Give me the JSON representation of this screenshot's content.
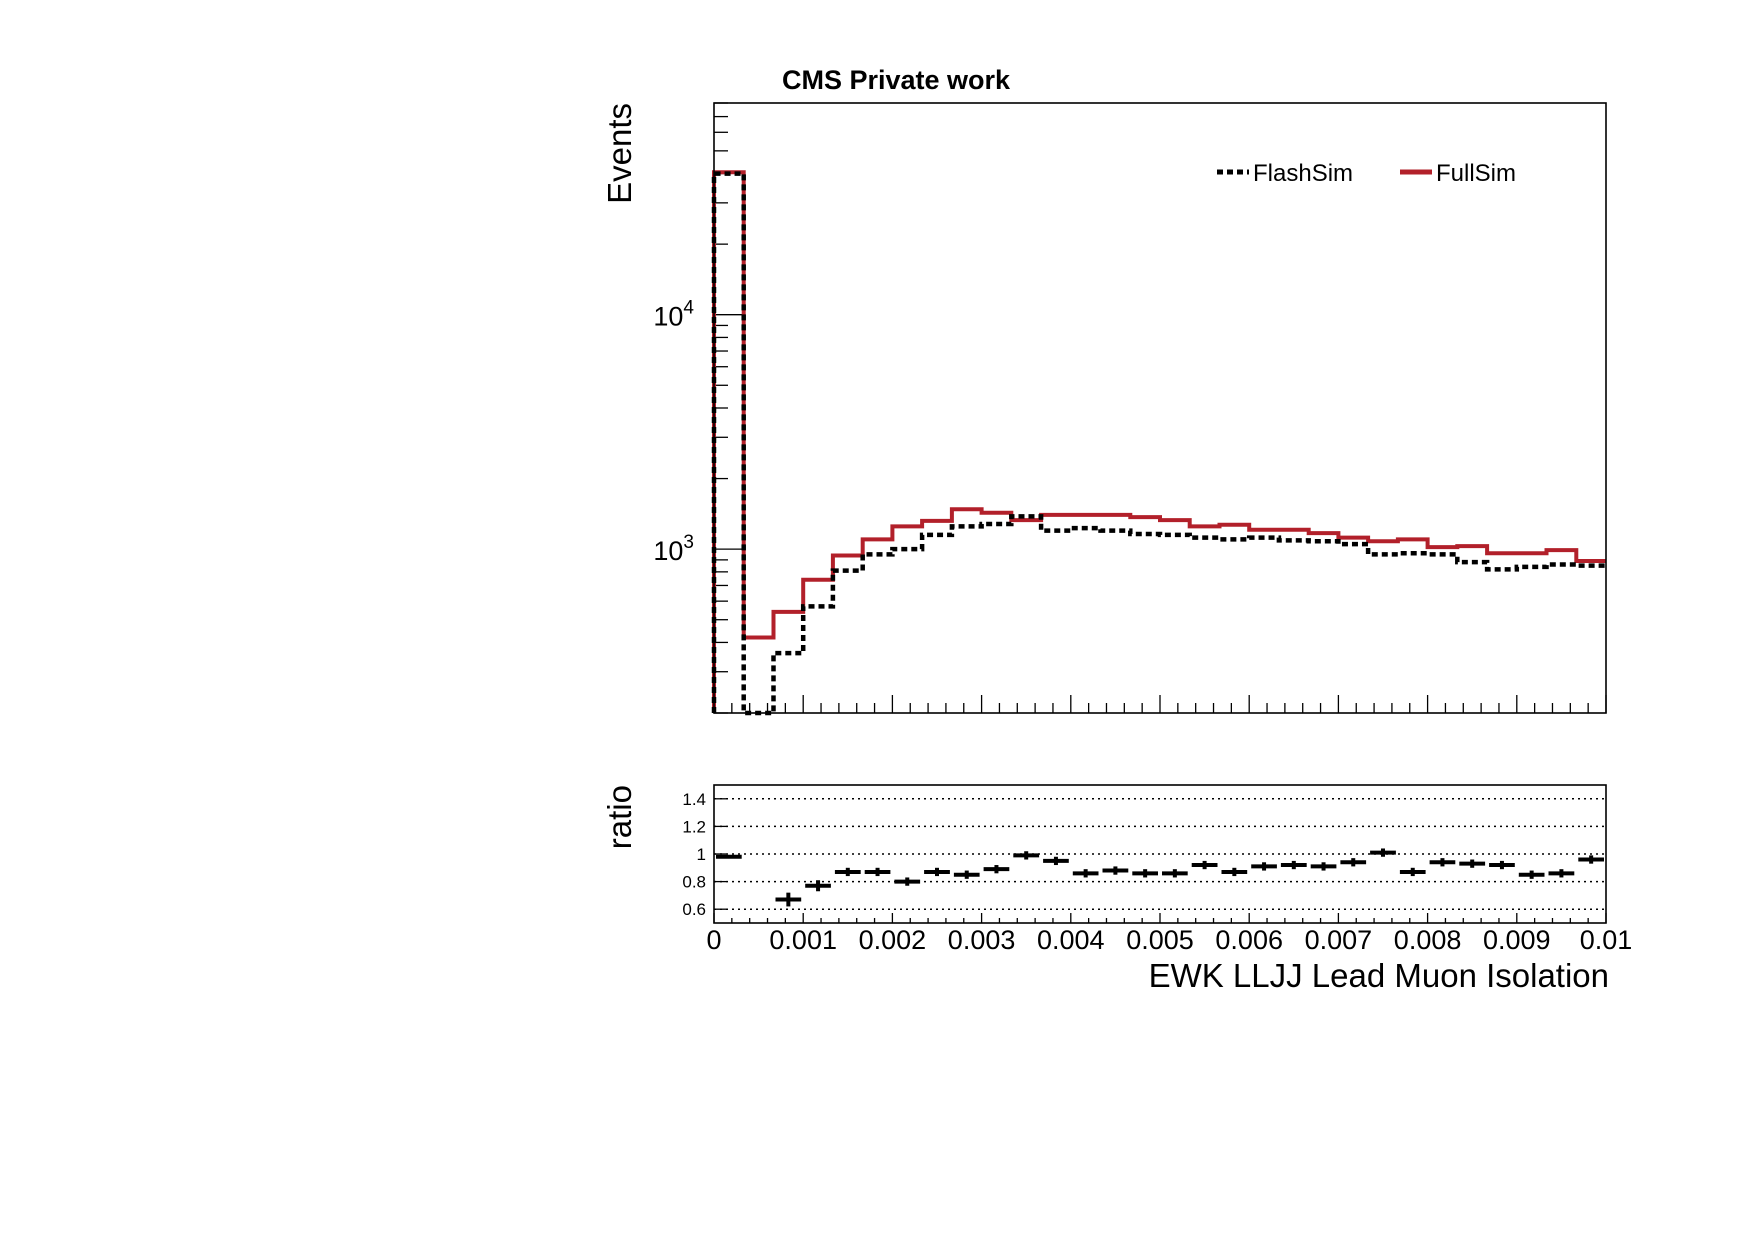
{
  "chart_data": [
    {
      "type": "histogram",
      "panel": "main",
      "title": "CMS Private work",
      "ylabel": "Events",
      "xlabel": "",
      "y_scale": "log",
      "ylim": [
        200,
        80000
      ],
      "y_major_ticks": [
        {
          "value": 1000,
          "base": "10",
          "exp": "3"
        },
        {
          "value": 10000,
          "base": "10",
          "exp": "4"
        }
      ],
      "xlim": [
        0,
        0.01
      ],
      "bin_edges": [
        0,
        0.000333,
        0.000667,
        0.001,
        0.001333,
        0.001667,
        0.002,
        0.002333,
        0.002667,
        0.003,
        0.003333,
        0.003667,
        0.004,
        0.004333,
        0.004667,
        0.005,
        0.005333,
        0.005667,
        0.006,
        0.006333,
        0.006667,
        0.007,
        0.007333,
        0.007667,
        0.008,
        0.008333,
        0.008667,
        0.009,
        0.009333,
        0.009667,
        0.01
      ],
      "legend_position": "top-right",
      "series": [
        {
          "name": "FlashSim",
          "style": "dashed",
          "color": "#000000",
          "values": [
            40000,
            200,
            360,
            570,
            810,
            950,
            1000,
            1150,
            1250,
            1280,
            1380,
            1200,
            1230,
            1200,
            1160,
            1150,
            1120,
            1100,
            1120,
            1090,
            1080,
            1050,
            950,
            960,
            950,
            880,
            820,
            840,
            860,
            850
          ]
        },
        {
          "name": "FullSim",
          "style": "solid",
          "color": "#b2202a",
          "values": [
            40500,
            420,
            540,
            740,
            940,
            1100,
            1250,
            1320,
            1480,
            1430,
            1330,
            1400,
            1400,
            1400,
            1370,
            1330,
            1250,
            1270,
            1210,
            1210,
            1170,
            1120,
            1080,
            1100,
            1020,
            1030,
            960,
            960,
            990,
            890
          ]
        }
      ]
    },
    {
      "type": "scatter",
      "panel": "ratio",
      "title": "",
      "ylabel": "ratio",
      "xlabel": "EWK LLJJ Lead Muon Isolation",
      "xlim": [
        0,
        0.01
      ],
      "ylim": [
        0.5,
        1.5
      ],
      "grid": "dotted horizontal",
      "y_ticks": [
        {
          "value": 0.6,
          "label": "0.6"
        },
        {
          "value": 0.8,
          "label": "0.8"
        },
        {
          "value": 1.0,
          "label": "1"
        },
        {
          "value": 1.2,
          "label": "1.2"
        },
        {
          "value": 1.4,
          "label": "1.4"
        }
      ],
      "x_ticks": [
        {
          "value": 0,
          "label": "0"
        },
        {
          "value": 0.001,
          "label": "0.001"
        },
        {
          "value": 0.002,
          "label": "0.002"
        },
        {
          "value": 0.003,
          "label": "0.003"
        },
        {
          "value": 0.004,
          "label": "0.004"
        },
        {
          "value": 0.005,
          "label": "0.005"
        },
        {
          "value": 0.006,
          "label": "0.006"
        },
        {
          "value": 0.007,
          "label": "0.007"
        },
        {
          "value": 0.008,
          "label": "0.008"
        },
        {
          "value": 0.009,
          "label": "0.009"
        },
        {
          "value": 0.01,
          "label": "0.01"
        }
      ],
      "series": [
        {
          "name": "",
          "color": "#000000",
          "values": [
            0.98,
            null,
            0.67,
            0.77,
            0.87,
            0.87,
            0.8,
            0.87,
            0.85,
            0.89,
            0.99,
            0.95,
            0.86,
            0.88,
            0.86,
            0.86,
            0.92,
            0.87,
            0.91,
            0.92,
            0.91,
            0.94,
            1.01,
            0.87,
            0.94,
            0.93,
            0.92,
            0.85,
            0.86,
            0.96
          ],
          "errors": [
            0.01,
            null,
            0.05,
            0.04,
            0.03,
            0.03,
            0.03,
            0.03,
            0.03,
            0.03,
            0.03,
            0.03,
            0.03,
            0.03,
            0.03,
            0.03,
            0.03,
            0.03,
            0.03,
            0.03,
            0.03,
            0.03,
            0.03,
            0.03,
            0.03,
            0.03,
            0.03,
            0.03,
            0.03,
            0.03
          ]
        }
      ]
    }
  ]
}
